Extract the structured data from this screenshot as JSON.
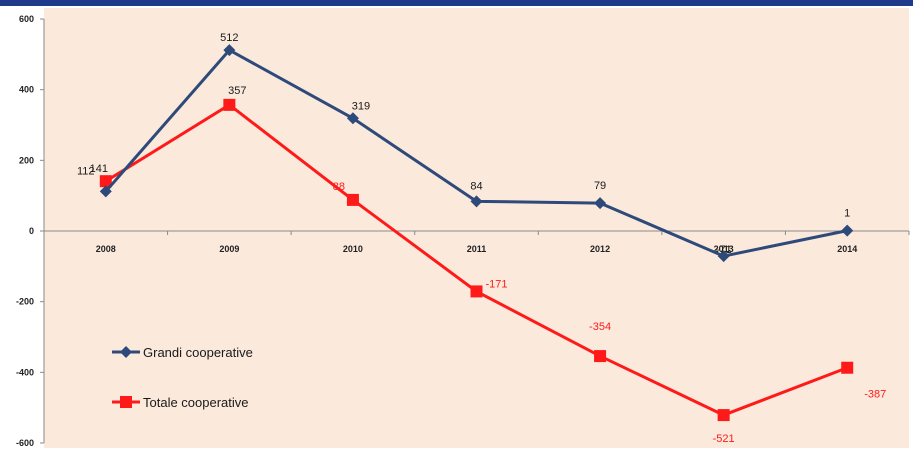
{
  "chart_data": {
    "type": "line",
    "categories": [
      "2008",
      "2009",
      "2010",
      "2011",
      "2012",
      "2013",
      "2014"
    ],
    "series": [
      {
        "name": "Grandi cooperative",
        "values": [
          112,
          512,
          319,
          84,
          79,
          -71,
          1
        ],
        "color": "#2e4a7a",
        "marker": "diamond"
      },
      {
        "name": "Totale cooperative",
        "values": [
          141,
          357,
          88,
          -171,
          -354,
          -521,
          -387
        ],
        "color": "#ff1a1a",
        "marker": "square"
      }
    ],
    "ylim": [
      -600,
      600
    ],
    "yticks": [
      "600",
      "400",
      "200",
      "0",
      "-200",
      "-400",
      "-600"
    ],
    "grid": false,
    "legend": "bottom-left",
    "plot_background": "#fbe9dc",
    "title": "",
    "xlabel": "",
    "ylabel": ""
  }
}
